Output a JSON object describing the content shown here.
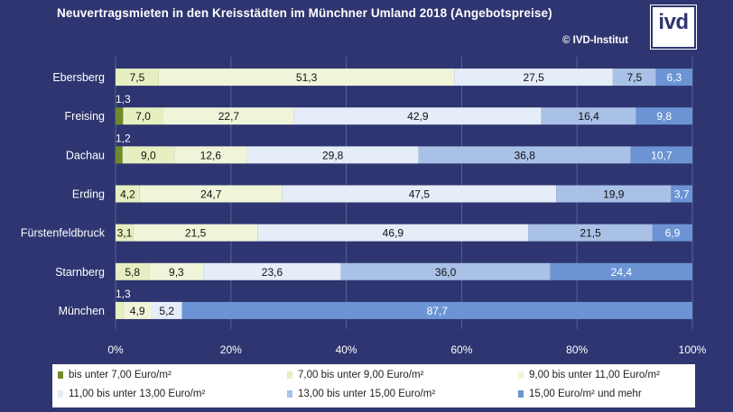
{
  "header": {
    "title": "Neuvertragsmieten  in den Kreisstädten  im Münchner  Umland 2018 (Angebotspreise)",
    "copyright": "© IVD-Institut",
    "logo_text": "ivd"
  },
  "colors": {
    "background": "#2e3570",
    "series": [
      "#6f8a2a",
      "#e6efc1",
      "#f0f5da",
      "#e4edf8",
      "#a9c1e6",
      "#6c94d4"
    ]
  },
  "chart_data": {
    "type": "bar",
    "orientation": "horizontal",
    "stacked": "percent",
    "title": "Neuvertragsmieten  in den Kreisstädten  im Münchner  Umland 2018 (Angebotspreise)",
    "categories": [
      "Ebersberg",
      "Freising",
      "Dachau",
      "Erding",
      "Fürstenfeldbruck",
      "Starnberg",
      "München"
    ],
    "series": [
      {
        "name": "bis unter 7,00 Euro/m²",
        "values": [
          0,
          1.3,
          1.2,
          0,
          0,
          0,
          0
        ],
        "labels": [
          "",
          "1,3",
          "1,2",
          "",
          "",
          "",
          ""
        ]
      },
      {
        "name": "7,00 bis unter 9,00 Euro/m²",
        "values": [
          7.5,
          7.0,
          9.0,
          4.2,
          3.1,
          5.8,
          1.3
        ],
        "labels": [
          "7,5",
          "7,0",
          "9,0",
          "4,2",
          "3,1",
          "5,8",
          "1,3"
        ]
      },
      {
        "name": "9,00 bis unter 11,00 Euro/m²",
        "values": [
          51.3,
          22.7,
          12.6,
          24.7,
          21.5,
          9.3,
          4.9
        ],
        "labels": [
          "51,3",
          "22,7",
          "12,6",
          "24,7",
          "21,5",
          "9,3",
          "4,9"
        ]
      },
      {
        "name": "11,00 bis unter 13,00 Euro/m²",
        "values": [
          27.5,
          42.9,
          29.8,
          47.5,
          46.9,
          23.6,
          5.2
        ],
        "labels": [
          "27,5",
          "42,9",
          "29,8",
          "47,5",
          "46,9",
          "23,6",
          "5,2"
        ]
      },
      {
        "name": "13,00 bis unter 15,00 Euro/m²",
        "values": [
          7.5,
          16.4,
          36.8,
          19.9,
          21.5,
          36.0,
          0
        ],
        "labels": [
          "7,5",
          "16,4",
          "36,8",
          "19,9",
          "21,5",
          "36,0",
          ""
        ]
      },
      {
        "name": "15,00 Euro/m² und mehr",
        "values": [
          6.3,
          9.8,
          10.7,
          3.7,
          6.9,
          24.4,
          87.7
        ],
        "labels": [
          "6,3",
          "9,8",
          "10,7",
          "3,7",
          "6,9",
          "24,4",
          "87,7"
        ]
      }
    ],
    "xlim": [
      0,
      100
    ],
    "xticks": [
      0,
      20,
      40,
      60,
      80,
      100
    ],
    "xtick_labels": [
      "0%",
      "20%",
      "40%",
      "60%",
      "80%",
      "100%"
    ],
    "grid": true,
    "legend_position": "bottom"
  }
}
